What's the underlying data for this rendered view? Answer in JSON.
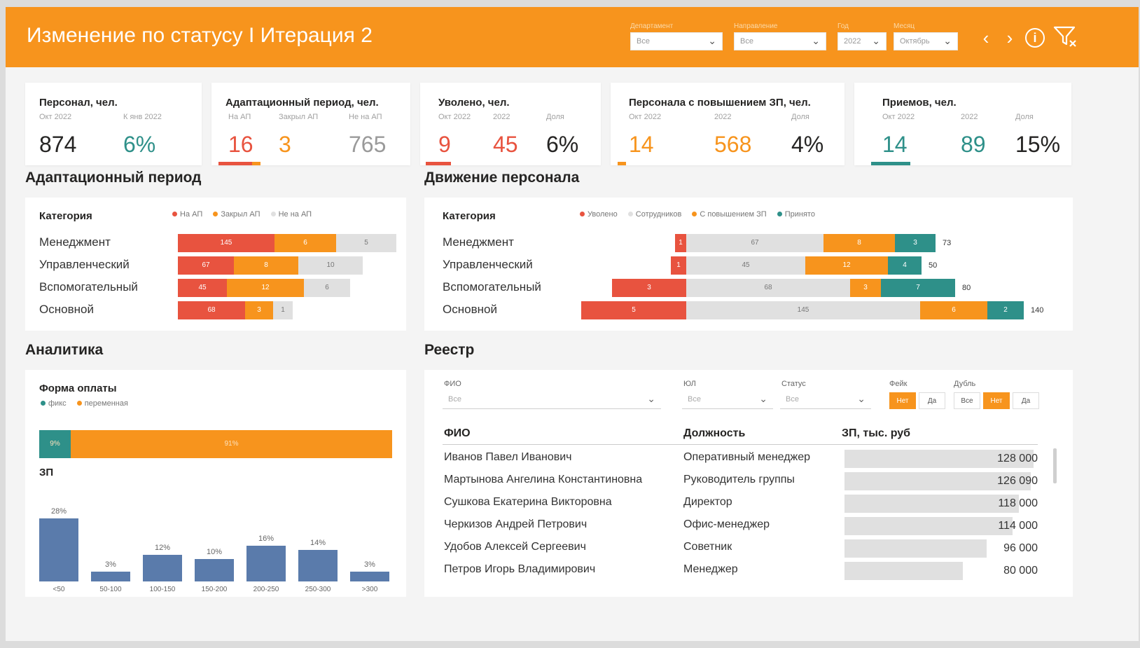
{
  "header": {
    "title": "Изменение по статусу I Итерация 2",
    "filters": [
      {
        "label": "Департамент",
        "value": "Все"
      },
      {
        "label": "Направление",
        "value": "Все"
      },
      {
        "label": "Год",
        "value": "2022"
      },
      {
        "label": "Месяц",
        "value": "Октябрь"
      }
    ],
    "icons": [
      "chevron-left-icon",
      "chevron-right-icon",
      "info-icon",
      "filter-icon"
    ]
  },
  "kpis": [
    {
      "title": "Персонал, чел.",
      "subs": [
        "Окт 2022",
        "К янв 2022"
      ],
      "values": [
        "874",
        "6%"
      ]
    },
    {
      "title": "Адаптационный период, чел.",
      "subs": [
        "На АП",
        "Закрыл АП",
        "Не на АП"
      ],
      "values": [
        "16",
        "3",
        "765"
      ]
    },
    {
      "title": "Уволено, чел.",
      "subs": [
        "Окт 2022",
        "2022",
        "Доля"
      ],
      "values": [
        "9",
        "45",
        "6%"
      ]
    },
    {
      "title": "Персонала с повышением ЗП, чел.",
      "subs": [
        "Окт 2022",
        "2022",
        "Доля"
      ],
      "values": [
        "14",
        "568",
        "4%"
      ]
    },
    {
      "title": "Приемов, чел.",
      "subs": [
        "Окт 2022",
        "2022",
        "Доля"
      ],
      "values": [
        "14",
        "89",
        "15%"
      ]
    }
  ],
  "colors": {
    "accent": "#f7941d",
    "red": "#e8533f",
    "teal": "#2e9089",
    "gray": "#e0e0e0",
    "blue": "#5a7bab"
  },
  "adaptation": {
    "section_title": "Адаптационный период",
    "head": "Категория",
    "legend": [
      "На АП",
      "Закрыл АП",
      "Не на АП"
    ],
    "categories": [
      "Менеджмент",
      "Управленческий",
      "Вспомогательный",
      "Основной"
    ],
    "series": [
      {
        "name": "На АП",
        "values": [
          145,
          67,
          45,
          68
        ]
      },
      {
        "name": "Закрыл АП",
        "values": [
          6,
          8,
          12,
          3
        ]
      },
      {
        "name": "Не на АП",
        "values": [
          5,
          10,
          6,
          1
        ]
      }
    ]
  },
  "movement": {
    "section_title": "Движение персонала",
    "head": "Категория",
    "legend": [
      "Уволено",
      "Сотрудников",
      "С повышением ЗП",
      "Принято"
    ],
    "categories": [
      "Менеджмент",
      "Управленческий",
      "Вспомогательный",
      "Основной"
    ],
    "series": [
      {
        "name": "Уволено",
        "values": [
          1,
          1,
          3,
          5
        ]
      },
      {
        "name": "Сотрудников",
        "values": [
          67,
          45,
          68,
          145
        ]
      },
      {
        "name": "С повышением ЗП",
        "values": [
          8,
          12,
          3,
          6
        ]
      },
      {
        "name": "Принято",
        "values": [
          3,
          4,
          7,
          2
        ]
      }
    ],
    "totals": [
      "73",
      "50",
      "80",
      "140"
    ]
  },
  "analytics": {
    "section_title": "Аналитика",
    "payment_title": "Форма оплаты",
    "payment_legend": [
      "фикс",
      "переменная"
    ],
    "payment_labels": [
      "9%",
      "91%"
    ],
    "payment_values": [
      9,
      91
    ],
    "zp_title": "ЗП"
  },
  "chart_data": {
    "type": "bar",
    "categories": [
      "<50",
      "50-100",
      "100-150",
      "150-200",
      "200-250",
      "250-300",
      ">300"
    ],
    "values": [
      28,
      3,
      12,
      10,
      16,
      14,
      3
    ],
    "labels": [
      "28%",
      "3%",
      "12%",
      "10%",
      "16%",
      "14%",
      "3%"
    ],
    "title": "ЗП",
    "ylim": [
      0,
      30
    ]
  },
  "registry": {
    "section_title": "Реестр",
    "filters": [
      {
        "label": "ФИО",
        "value": "Все"
      },
      {
        "label": "ЮЛ",
        "value": "Все"
      },
      {
        "label": "Статус",
        "value": "Все"
      }
    ],
    "fake_label": "Фейк",
    "fake_options": [
      "Нет",
      "Да"
    ],
    "dup_label": "Дубль",
    "dup_options": [
      "Все",
      "Нет",
      "Да"
    ],
    "columns": [
      "ФИО",
      "Должность",
      "ЗП, тыс. руб"
    ],
    "rows": [
      {
        "name": "Иванов Павел Иванович",
        "position": "Оперативный менеджер",
        "salary": "128 000",
        "value": 128000
      },
      {
        "name": "Мартынова Ангелина Константиновна",
        "position": "Руководитель группы",
        "salary": "126 090",
        "value": 126090
      },
      {
        "name": "Сушкова Екатерина Викторовна",
        "position": "Директор",
        "salary": "118 000",
        "value": 118000
      },
      {
        "name": "Черкизов Андрей Петрович",
        "position": "Офис-менеджер",
        "salary": "114 000",
        "value": 114000
      },
      {
        "name": "Удобов Алексей Сергеевич",
        "position": "Советник",
        "salary": "96 000",
        "value": 96000
      },
      {
        "name": "Петров Игорь Владимирович",
        "position": "Менеджер",
        "salary": "80 000",
        "value": 80000
      }
    ]
  }
}
